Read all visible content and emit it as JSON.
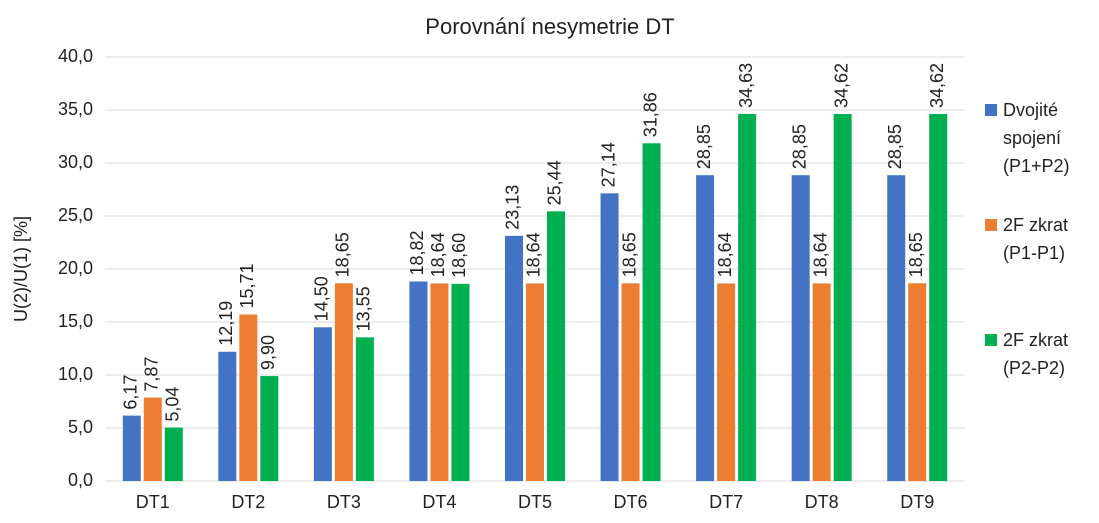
{
  "chart_data": {
    "type": "bar",
    "title": "Porovnání nesymetrie DT",
    "y_label": "U(2)/U(1) [%]",
    "categories": [
      "DT1",
      "DT2",
      "DT3",
      "DT4",
      "DT5",
      "DT6",
      "DT7",
      "DT8",
      "DT9"
    ],
    "series": [
      {
        "name": "Dvojité spojení (P1+P2)",
        "color": "#4472c4",
        "values": [
          6.17,
          12.19,
          14.5,
          18.82,
          23.13,
          27.14,
          28.85,
          28.85,
          28.85
        ],
        "value_labels": [
          "6,17",
          "12,19",
          "14,50",
          "18,82",
          "23,13",
          "27,14",
          "28,85",
          "28,85",
          "28,85"
        ]
      },
      {
        "name": "2F zkrat (P1-P1)",
        "color": "#ed7d31",
        "values": [
          7.87,
          15.71,
          18.65,
          18.64,
          18.64,
          18.65,
          18.64,
          18.64,
          18.65
        ],
        "value_labels": [
          "7,87",
          "15,71",
          "18,65",
          "18,64",
          "18,64",
          "18,65",
          "18,64",
          "18,64",
          "18,65"
        ]
      },
      {
        "name": "2F zkrat (P2-P2)",
        "color": "#00b050",
        "values": [
          5.04,
          9.9,
          13.55,
          18.6,
          25.44,
          31.86,
          34.63,
          34.62,
          34.62
        ],
        "value_labels": [
          "5,04",
          "9,90",
          "13,55",
          "18,60",
          "25,44",
          "31,86",
          "34,63",
          "34,62",
          "34,62"
        ]
      }
    ],
    "ylim": [
      0,
      40
    ],
    "yticks": [
      {
        "value": 0,
        "label": "0,0"
      },
      {
        "value": 5,
        "label": "5,0"
      },
      {
        "value": 10,
        "label": "10,0"
      },
      {
        "value": 15,
        "label": "15,0"
      },
      {
        "value": 20,
        "label": "20,0"
      },
      {
        "value": 25,
        "label": "25,0"
      },
      {
        "value": 30,
        "label": "30,0"
      },
      {
        "value": 35,
        "label": "35,0"
      },
      {
        "value": 40,
        "label": "40,0"
      }
    ],
    "grid": true,
    "legend": "right"
  }
}
